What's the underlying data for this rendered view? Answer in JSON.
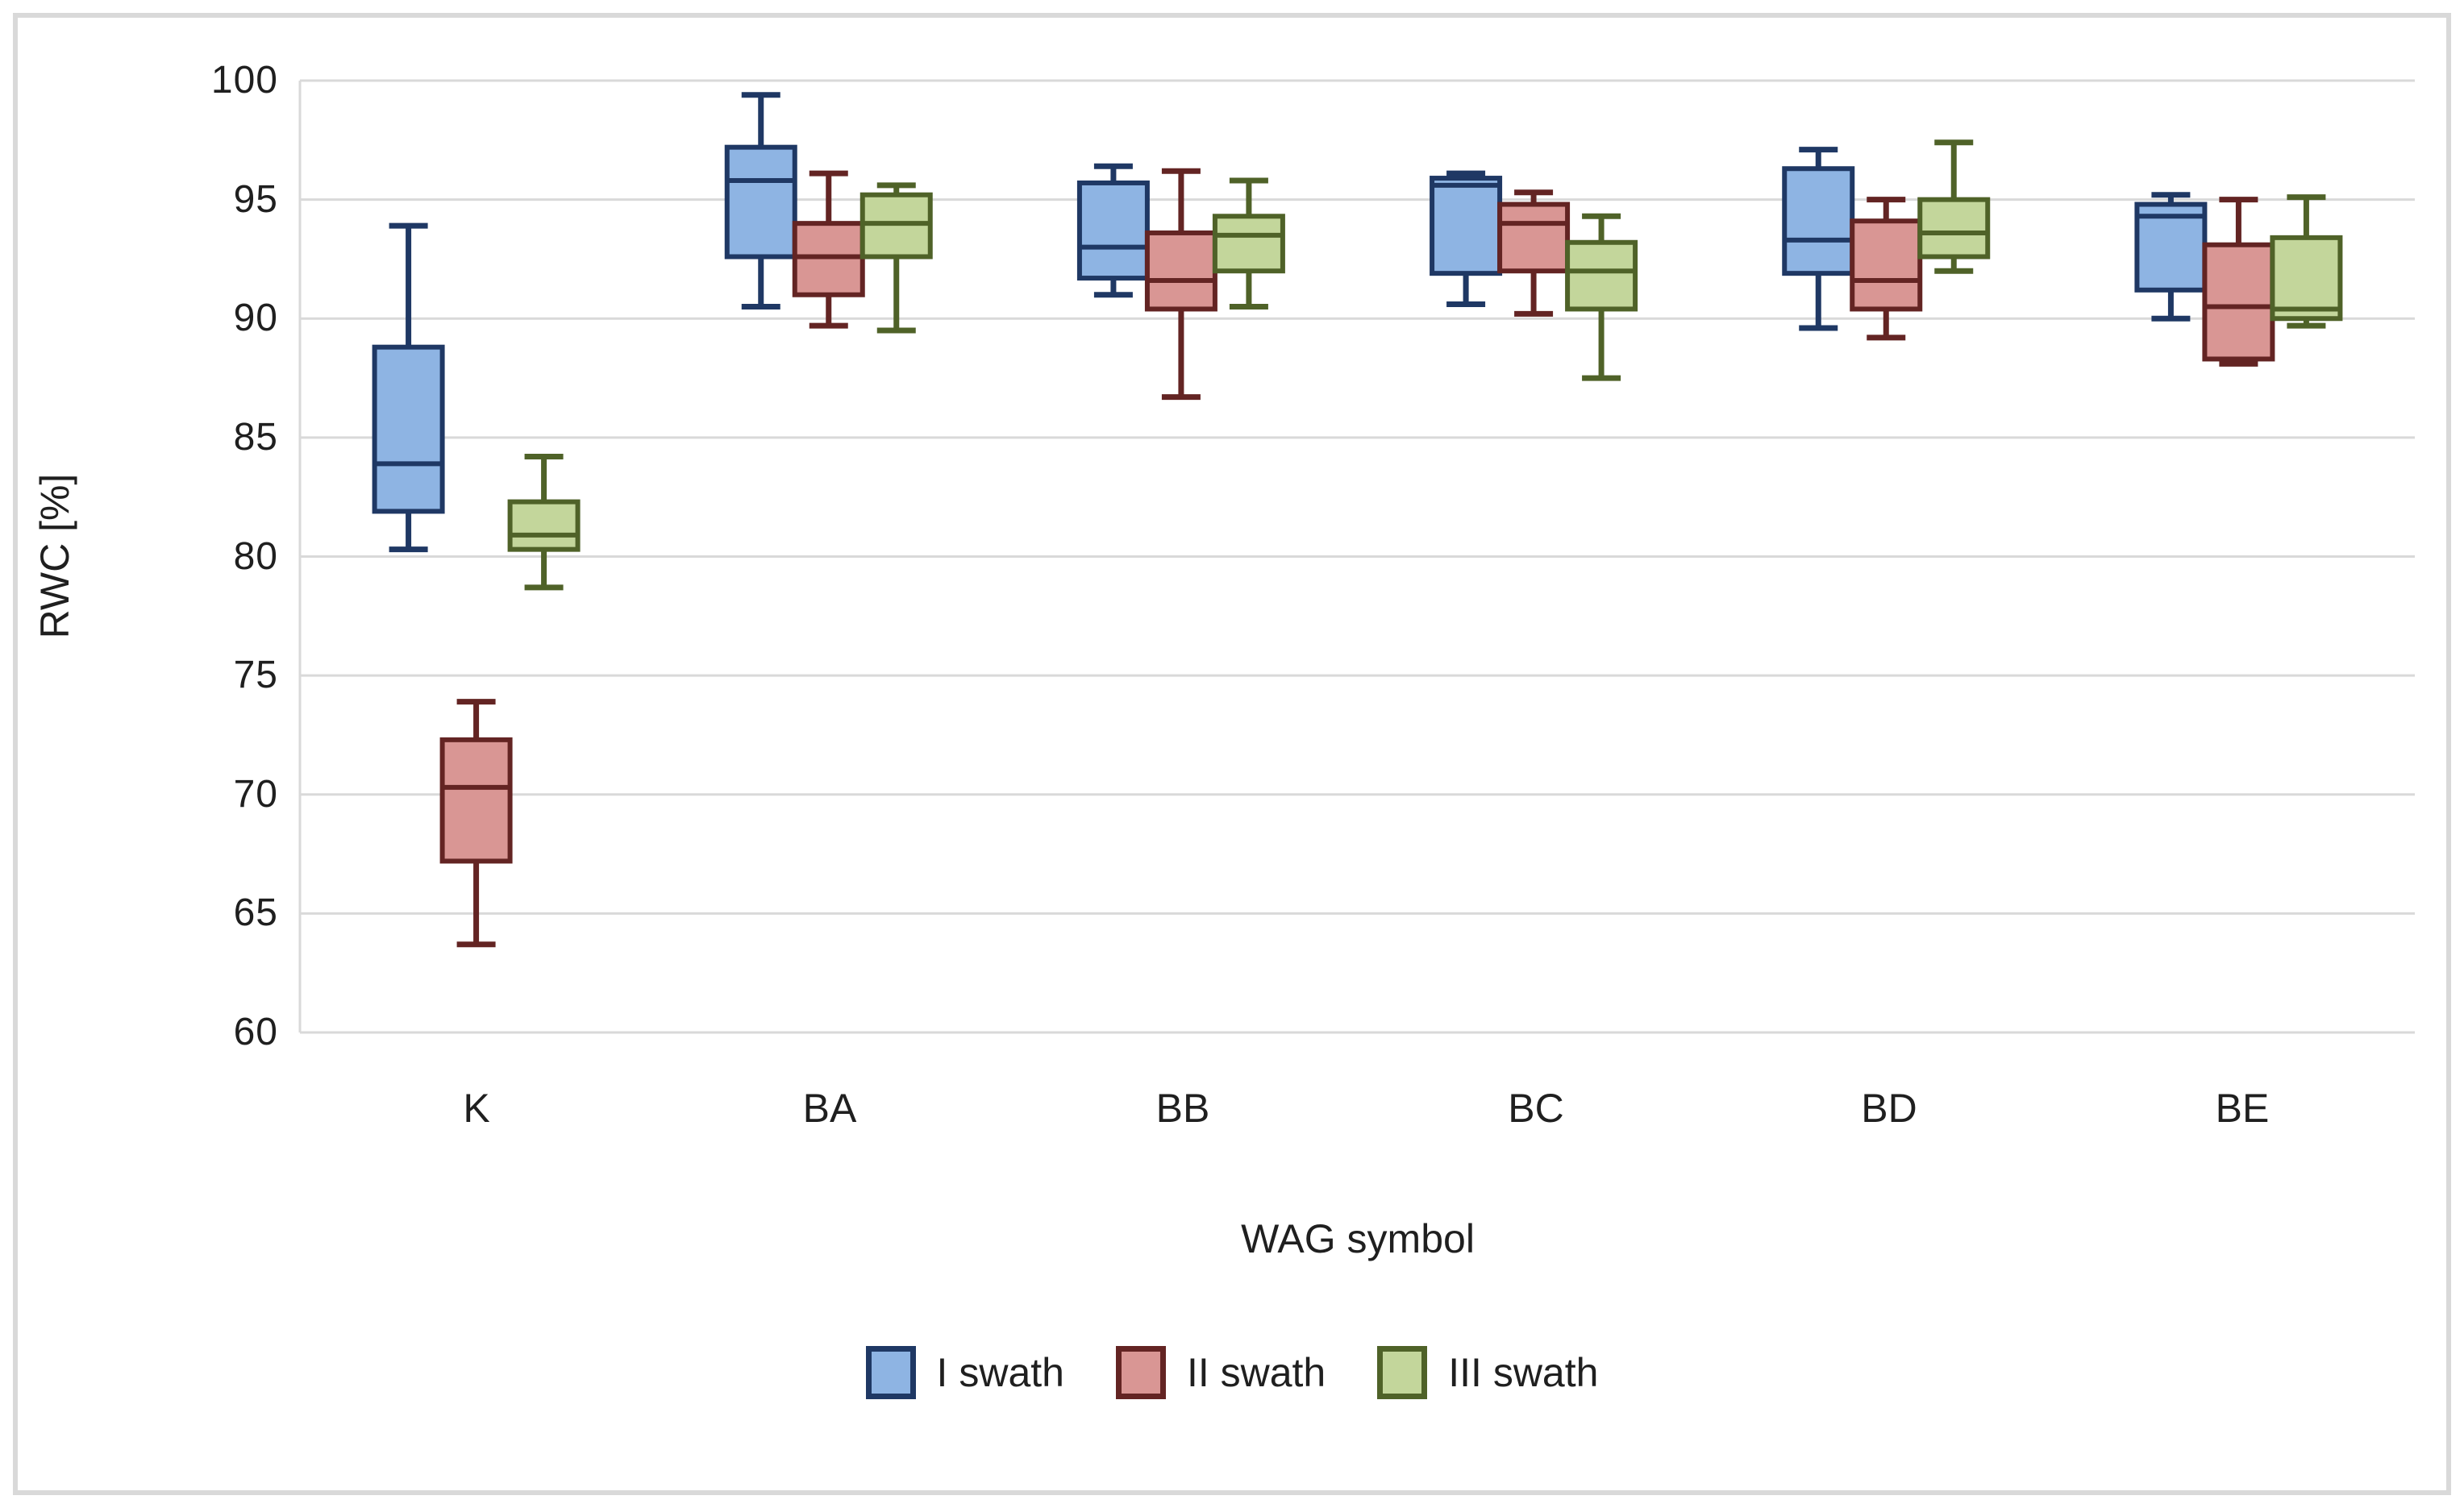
{
  "chart_data": {
    "type": "boxplot",
    "title": "",
    "xlabel": "WAG symbol",
    "ylabel": "RWC [%]",
    "categories": [
      "K",
      "BA",
      "BB",
      "BC",
      "BD",
      "BE"
    ],
    "y_axis": {
      "min": 60,
      "max": 100,
      "step": 5,
      "tick_labels": [
        "100",
        "95",
        "90",
        "85",
        "80",
        "75",
        "70",
        "65",
        "60"
      ],
      "grid": true
    },
    "legend_position": "bottom-center",
    "colors": {
      "gridline": "#D9D9D9",
      "chart_border": "#D9D9D9",
      "axis_text": "#1f1f1f"
    },
    "series": [
      {
        "name": "I swath",
        "fill": "#8EB4E3",
        "stroke": "#1F3864",
        "boxes": [
          {
            "category": "K",
            "min": 80.3,
            "q1": 81.9,
            "median": 83.9,
            "q3": 88.8,
            "max": 93.9
          },
          {
            "category": "BA",
            "min": 90.5,
            "q1": 92.6,
            "median": 95.8,
            "q3": 97.2,
            "max": 99.4
          },
          {
            "category": "BB",
            "min": 91.0,
            "q1": 91.7,
            "median": 93.0,
            "q3": 95.7,
            "max": 96.4
          },
          {
            "category": "BC",
            "min": 90.6,
            "q1": 91.9,
            "median": 95.6,
            "q3": 95.9,
            "max": 96.1
          },
          {
            "category": "BD",
            "min": 89.6,
            "q1": 91.9,
            "median": 93.3,
            "q3": 96.3,
            "max": 97.1
          },
          {
            "category": "BE",
            "min": 90.0,
            "q1": 91.2,
            "median": 94.3,
            "q3": 94.8,
            "max": 95.2
          }
        ]
      },
      {
        "name": "II swath",
        "fill": "#D99694",
        "stroke": "#632423",
        "boxes": [
          {
            "category": "K",
            "min": 63.7,
            "q1": 67.2,
            "median": 70.3,
            "q3": 72.3,
            "max": 73.9
          },
          {
            "category": "BA",
            "min": 89.7,
            "q1": 91.0,
            "median": 92.6,
            "q3": 94.0,
            "max": 96.1
          },
          {
            "category": "BB",
            "min": 86.7,
            "q1": 90.4,
            "median": 91.6,
            "q3": 93.6,
            "max": 96.2
          },
          {
            "category": "BC",
            "min": 90.2,
            "q1": 92.0,
            "median": 94.0,
            "q3": 94.8,
            "max": 95.3
          },
          {
            "category": "BD",
            "min": 89.2,
            "q1": 90.4,
            "median": 91.6,
            "q3": 94.1,
            "max": 95.0
          },
          {
            "category": "BE",
            "min": 88.1,
            "q1": 88.3,
            "median": 90.5,
            "q3": 93.1,
            "max": 95.0
          }
        ]
      },
      {
        "name": "III swath",
        "fill": "#C3D69B",
        "stroke": "#4F6228",
        "boxes": [
          {
            "category": "K",
            "min": 78.7,
            "q1": 80.3,
            "median": 80.9,
            "q3": 82.3,
            "max": 84.2
          },
          {
            "category": "BA",
            "min": 89.5,
            "q1": 92.6,
            "median": 94.0,
            "q3": 95.2,
            "max": 95.6
          },
          {
            "category": "BB",
            "min": 90.5,
            "q1": 92.0,
            "median": 93.5,
            "q3": 94.3,
            "max": 95.8
          },
          {
            "category": "BC",
            "min": 87.5,
            "q1": 90.4,
            "median": 92.0,
            "q3": 93.2,
            "max": 94.3
          },
          {
            "category": "BD",
            "min": 92.0,
            "q1": 92.6,
            "median": 93.6,
            "q3": 95.0,
            "max": 97.4
          },
          {
            "category": "BE",
            "min": 89.7,
            "q1": 90.0,
            "median": 90.4,
            "q3": 93.4,
            "max": 95.1
          }
        ]
      }
    ]
  }
}
